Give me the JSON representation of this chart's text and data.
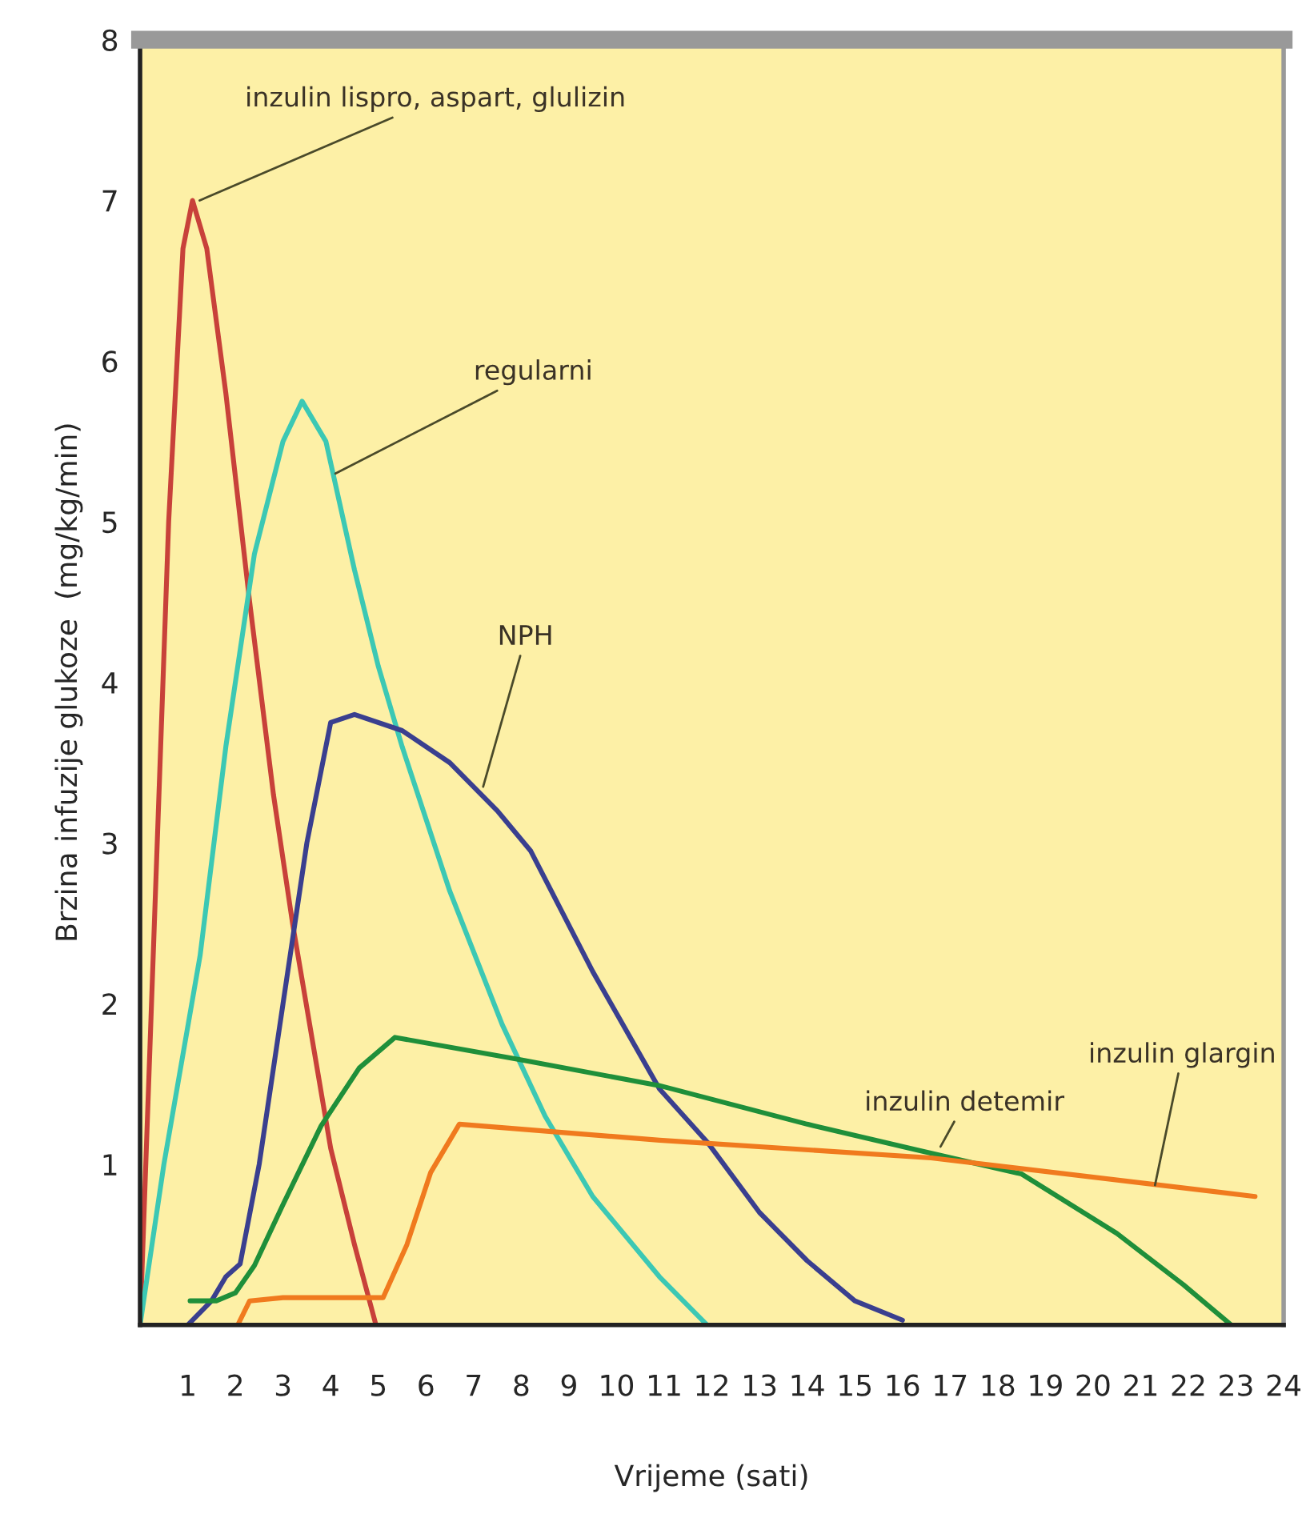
{
  "chart_data": {
    "type": "line",
    "xlabel": "Vrijeme (sati)",
    "ylabel": "Brzina infuzije glukoze  (mg/kg/min)",
    "xlim": [
      0,
      24
    ],
    "ylim": [
      0,
      8
    ],
    "xticks": [
      {
        "value": 0,
        "label": null
      },
      1,
      2,
      3,
      4,
      5,
      6,
      7,
      8,
      9,
      10,
      11,
      12,
      13,
      14,
      15,
      16,
      17,
      18,
      19,
      20,
      21,
      22,
      23,
      24
    ],
    "yticks": [
      1,
      2,
      3,
      4,
      5,
      6,
      7,
      8
    ],
    "grid": false,
    "legend": false,
    "marker": "none",
    "line_style": "solid",
    "series": [
      {
        "name": "inzulin lispro, aspart, glulizin",
        "color": "#c8413a",
        "x": [
          0,
          0.3,
          0.6,
          0.9,
          1.1,
          1.4,
          1.8,
          2.3,
          2.8,
          3.2,
          3.6,
          4.0,
          4.5,
          4.95
        ],
        "values": [
          0,
          2.5,
          5.0,
          6.7,
          7.0,
          6.7,
          5.8,
          4.5,
          3.3,
          2.5,
          1.8,
          1.1,
          0.5,
          0
        ]
      },
      {
        "name": "regularni",
        "color": "#3cc8b4",
        "x": [
          0,
          0.5,
          1.26,
          1.8,
          2.4,
          3.0,
          3.4,
          3.9,
          4.5,
          5.0,
          5.5,
          6.5,
          7.6,
          8.5,
          9.5,
          10.9,
          11.9
        ],
        "values": [
          0,
          1.0,
          2.3,
          3.6,
          4.8,
          5.5,
          5.75,
          5.5,
          4.7,
          4.1,
          3.6,
          2.7,
          1.87,
          1.3,
          0.8,
          0.3,
          0
        ]
      },
      {
        "name": "NPH",
        "color": "#3a3f8f",
        "x": [
          1,
          1.5,
          1.8,
          2.1,
          2.5,
          3.0,
          3.5,
          4.0,
          4.5,
          5.5,
          6.5,
          7.5,
          8.2,
          9.5,
          10.9,
          11.9,
          13,
          14,
          15,
          16
        ],
        "values": [
          0,
          0.15,
          0.3,
          0.38,
          1.0,
          2.0,
          3.0,
          3.75,
          3.8,
          3.7,
          3.5,
          3.2,
          2.95,
          2.2,
          1.47,
          1.14,
          0.7,
          0.4,
          0.15,
          0.03
        ]
      },
      {
        "name": "inzulin detemir",
        "color": "#1f8f3a",
        "x": [
          1.05,
          1.6,
          2.0,
          2.4,
          3.0,
          3.8,
          4.6,
          5.35,
          8,
          10.9,
          14,
          16.3,
          18.5,
          20.5,
          21.9,
          22.9
        ],
        "values": [
          0.15,
          0.15,
          0.2,
          0.37,
          0.75,
          1.24,
          1.6,
          1.79,
          1.65,
          1.49,
          1.25,
          1.09,
          0.94,
          0.57,
          0.25,
          0
        ]
      },
      {
        "name": "inzulin glargin",
        "color": "#f07a1e",
        "x": [
          2.05,
          2.3,
          3.0,
          4.0,
          5.1,
          5.6,
          6.1,
          6.7,
          10.9,
          16.6,
          23.4
        ],
        "values": [
          0,
          0.15,
          0.17,
          0.17,
          0.17,
          0.5,
          0.95,
          1.25,
          1.15,
          1.04,
          0.8
        ]
      }
    ]
  }
}
